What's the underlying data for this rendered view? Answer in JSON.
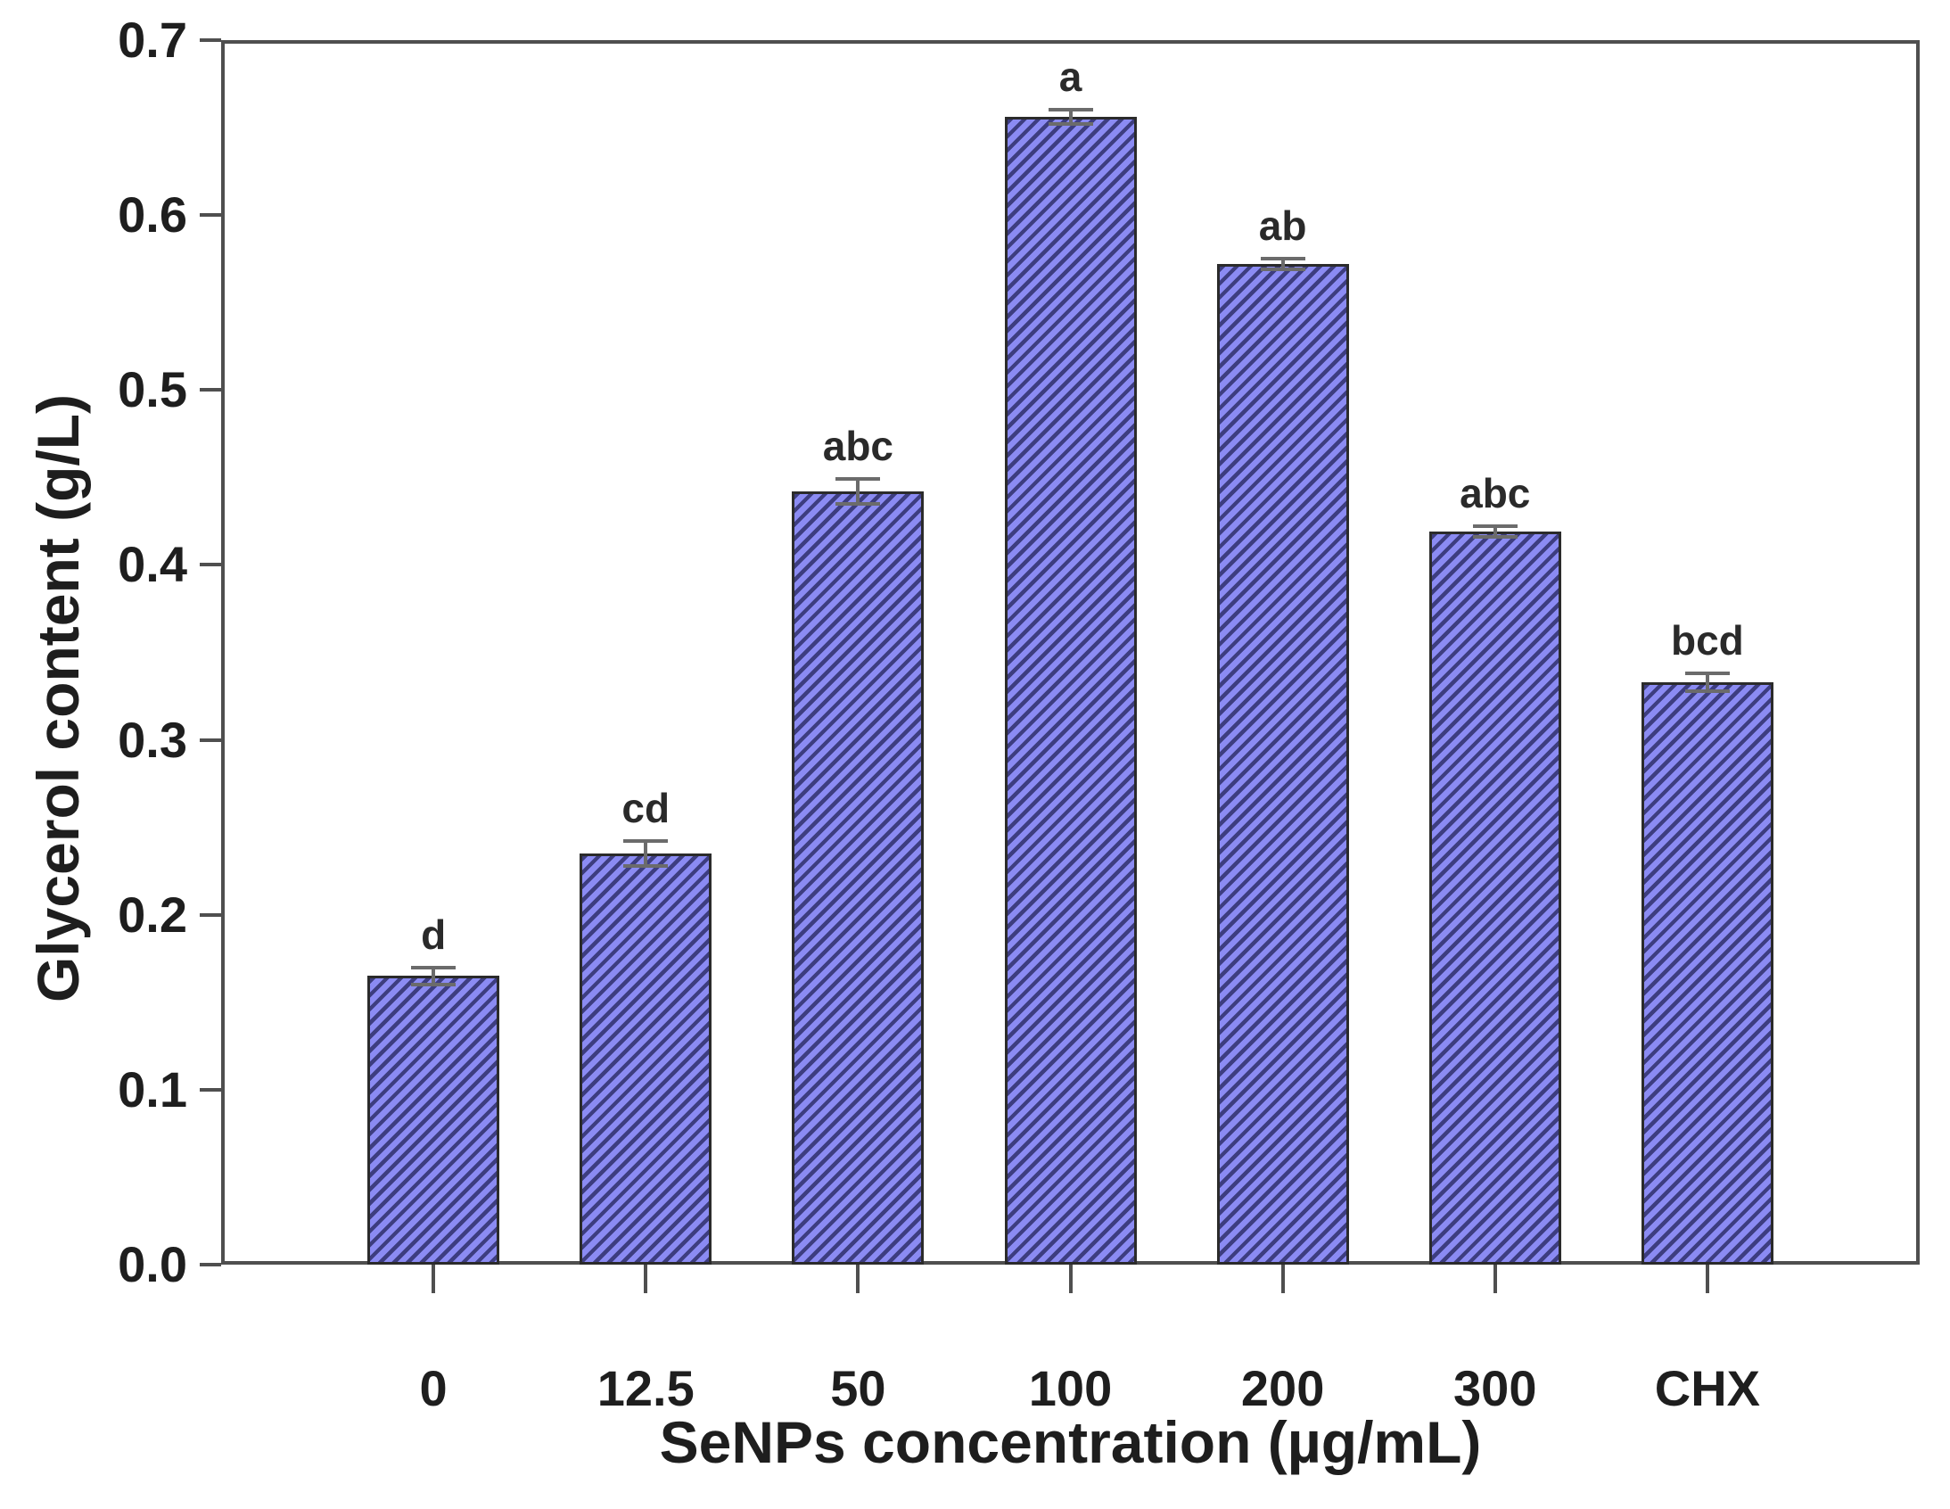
{
  "chart_data": {
    "type": "bar",
    "title": "",
    "xlabel": "SeNPs concentration (µg/mL)",
    "ylabel": "Glycerol content (g/L)",
    "categories": [
      "0",
      "12.5",
      "50",
      "100",
      "200",
      "300",
      "CHX"
    ],
    "values": [
      0.165,
      0.235,
      0.442,
      0.656,
      0.572,
      0.419,
      0.333
    ],
    "errors": [
      0.005,
      0.007,
      0.007,
      0.004,
      0.003,
      0.003,
      0.005
    ],
    "sig_letters": [
      "d",
      "cd",
      "abc",
      "a",
      "ab",
      "abc",
      "bcd"
    ],
    "ylim": [
      0,
      0.7
    ],
    "ytick_labels": [
      "0.0",
      "0.1",
      "0.2",
      "0.3",
      "0.4",
      "0.5",
      "0.6",
      "0.7"
    ],
    "grid": false,
    "legend": "none",
    "bar_hatch": "forward-diagonal"
  },
  "colors": {
    "bar_fill": "#8b8bf3",
    "bar_hatch_line": "#3d3d80",
    "bar_border": "#2b2b2b",
    "axis_line": "#4f4f4f",
    "error_bar": "#6b6b6b",
    "text": "#1e1e1e"
  }
}
